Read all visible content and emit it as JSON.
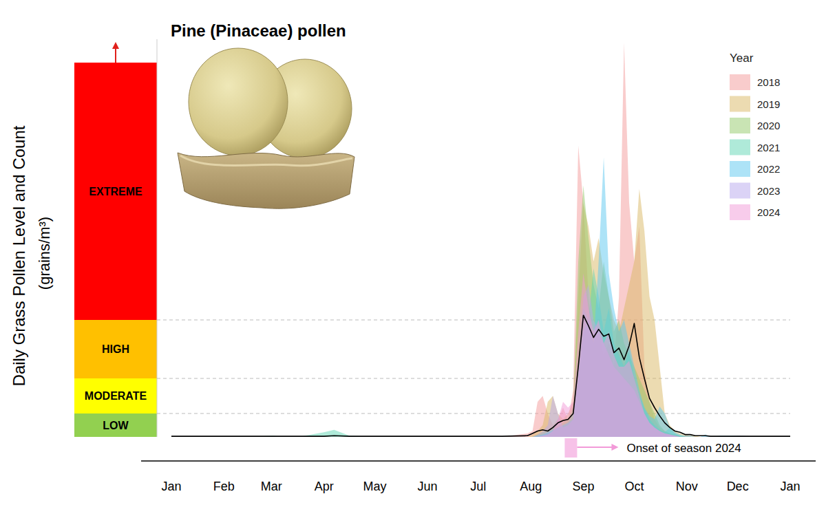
{
  "chart_data": {
    "type": "area",
    "title": "Pine (Pinaceae) pollen",
    "y_label": "Daily Grass Pollen Level and Count",
    "y_unit": "(grains/m³)",
    "legend_title": "Year",
    "legend": "top-right",
    "grid": true,
    "tick_labels": "x",
    "xlim": [
      0,
      365
    ],
    "xticks": [
      {
        "value": 0,
        "label": "Jan"
      },
      {
        "value": 31,
        "label": "Feb"
      },
      {
        "value": 59,
        "label": "Mar"
      },
      {
        "value": 90,
        "label": "Apr"
      },
      {
        "value": 120,
        "label": "May"
      },
      {
        "value": 151,
        "label": "Jun"
      },
      {
        "value": 181,
        "label": "Jul"
      },
      {
        "value": 212,
        "label": "Aug"
      },
      {
        "value": 243,
        "label": "Sep"
      },
      {
        "value": 273,
        "label": "Oct"
      },
      {
        "value": 304,
        "label": "Nov"
      },
      {
        "value": 334,
        "label": "Dec"
      },
      {
        "value": 365,
        "label": "Jan"
      }
    ],
    "ylim": [
      0,
      340
    ],
    "yticks": [
      20,
      50,
      100
    ],
    "levels": [
      {
        "label": "LOW",
        "from": 0,
        "to": 20,
        "color": "#92d050"
      },
      {
        "label": "MODERATE",
        "from": 20,
        "to": 50,
        "color": "#ffff00"
      },
      {
        "label": "HIGH",
        "from": 50,
        "to": 100,
        "color": "#ffc000"
      },
      {
        "label": "EXTREME",
        "from": 100,
        "to": 320,
        "color": "#ff0000"
      }
    ],
    "annotations": [
      {
        "text": "Onset of season 2024",
        "x": 232,
        "color": "#f29ad8"
      }
    ],
    "x": [
      0,
      15,
      30,
      45,
      60,
      66,
      75,
      90,
      96,
      105,
      120,
      135,
      150,
      165,
      180,
      195,
      210,
      213,
      216,
      219,
      222,
      225,
      228,
      231,
      234,
      237,
      240,
      243,
      246,
      249,
      252,
      255,
      258,
      261,
      264,
      267,
      270,
      273,
      276,
      279,
      282,
      285,
      288,
      291,
      294,
      297,
      300,
      303,
      306,
      309,
      312,
      315,
      318,
      324,
      335,
      350,
      365
    ],
    "series": [
      {
        "name": "2018",
        "color": "#f39a9a",
        "values": [
          0,
          0,
          0,
          0,
          0,
          0,
          0,
          0,
          0,
          0,
          0,
          0,
          0,
          0,
          0,
          0,
          3,
          5,
          30,
          35,
          20,
          10,
          15,
          25,
          15,
          40,
          249,
          200,
          120,
          80,
          90,
          70,
          80,
          60,
          120,
          337,
          200,
          150,
          180,
          60,
          30,
          15,
          8,
          5,
          3,
          2,
          1,
          1,
          1,
          0,
          0,
          0,
          0,
          0,
          1,
          0,
          0
        ]
      },
      {
        "name": "2019",
        "color": "#d9b864",
        "values": [
          0,
          0,
          0,
          0,
          0,
          0,
          0,
          0,
          0,
          0,
          0,
          0,
          0,
          0,
          0,
          0,
          0,
          2,
          5,
          10,
          30,
          35,
          20,
          15,
          20,
          30,
          120,
          200,
          180,
          150,
          170,
          140,
          120,
          100,
          90,
          110,
          130,
          150,
          212,
          176,
          120,
          100,
          60,
          20,
          10,
          5,
          3,
          2,
          1,
          1,
          0,
          0,
          0,
          0,
          0,
          0,
          0
        ]
      },
      {
        "name": "2020",
        "color": "#94c96a",
        "values": [
          0,
          0,
          0,
          0,
          0,
          0,
          0,
          0,
          0,
          0,
          0,
          0,
          0,
          0,
          0,
          0,
          0,
          0,
          2,
          4,
          6,
          8,
          10,
          12,
          15,
          25,
          150,
          215,
          170,
          130,
          110,
          150,
          120,
          90,
          100,
          80,
          70,
          60,
          50,
          40,
          30,
          20,
          10,
          5,
          3,
          2,
          1,
          0,
          0,
          0,
          0,
          0,
          0,
          0,
          0,
          0,
          0
        ]
      },
      {
        "name": "2021",
        "color": "#5fd6b4",
        "values": [
          0,
          0,
          0,
          0,
          1,
          0,
          0,
          4,
          6,
          1,
          0,
          0,
          0,
          0,
          0,
          0,
          0,
          0,
          1,
          2,
          3,
          5,
          8,
          10,
          12,
          20,
          60,
          110,
          100,
          144,
          120,
          90,
          110,
          80,
          70,
          60,
          75,
          50,
          35,
          25,
          15,
          10,
          6,
          4,
          8,
          3,
          1,
          0,
          0,
          0,
          0,
          0,
          0,
          0,
          0,
          0,
          0
        ]
      },
      {
        "name": "2022",
        "color": "#5cc8ef",
        "values": [
          0,
          0,
          0,
          0,
          0,
          0,
          0,
          0,
          0,
          0,
          0,
          0,
          0,
          0,
          0,
          0,
          0,
          0,
          1,
          2,
          4,
          6,
          8,
          10,
          12,
          15,
          50,
          90,
          100,
          80,
          150,
          239,
          140,
          110,
          90,
          100,
          80,
          60,
          40,
          25,
          18,
          15,
          26,
          20,
          8,
          4,
          2,
          1,
          1,
          0,
          0,
          2,
          0,
          1,
          1,
          0,
          0
        ]
      },
      {
        "name": "2023",
        "color": "#b7a8ee",
        "values": [
          0,
          0,
          0,
          0,
          0,
          0,
          0,
          0,
          0,
          0,
          0,
          0,
          0,
          0,
          0,
          0,
          0,
          0,
          2,
          5,
          10,
          35,
          20,
          8,
          10,
          15,
          60,
          120,
          130,
          100,
          90,
          80,
          70,
          60,
          55,
          50,
          45,
          40,
          30,
          20,
          12,
          8,
          5,
          3,
          2,
          1,
          0,
          0,
          0,
          0,
          0,
          0,
          0,
          0,
          0,
          0,
          0
        ]
      },
      {
        "name": "2024",
        "color": "#f29ad8",
        "values": [
          0,
          0,
          0,
          0,
          0,
          0,
          0,
          0,
          0,
          0,
          0,
          0,
          0,
          0,
          0,
          0,
          0,
          0,
          0,
          1,
          2,
          5,
          15,
          30,
          25,
          30,
          90,
          140,
          110,
          90,
          100,
          80,
          90,
          70,
          60,
          60,
          65,
          50,
          35,
          20,
          12,
          8,
          5,
          3,
          2,
          1,
          0,
          0,
          0,
          0,
          0,
          0,
          0,
          0,
          0,
          0,
          0
        ]
      },
      {
        "type": "line",
        "color": "#000000",
        "values": [
          0.5,
          0.5,
          0.5,
          0.5,
          0.5,
          0.5,
          0.5,
          0.5,
          1,
          0.5,
          0.5,
          0.5,
          0.5,
          0.5,
          0.5,
          0.5,
          1,
          3,
          5,
          6,
          5,
          8,
          12,
          14,
          15,
          20,
          60,
          104,
          95,
          85,
          92,
          86,
          88,
          72,
          76,
          66,
          78,
          97,
          68,
          50,
          33,
          25,
          18,
          12,
          8,
          5,
          4,
          2,
          2,
          1,
          1,
          1,
          0.5,
          0.5,
          0.5,
          0.5,
          0.5
        ]
      }
    ]
  }
}
